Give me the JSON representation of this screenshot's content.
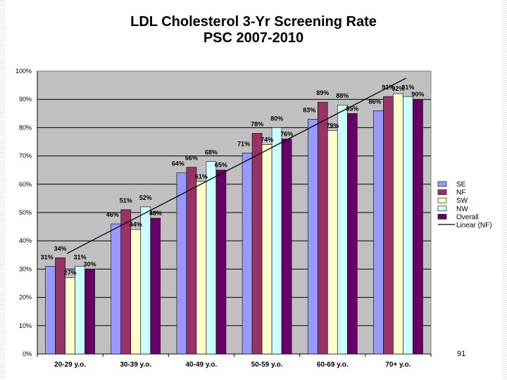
{
  "page": {
    "number": "91"
  },
  "chart_data": {
    "type": "bar",
    "title": "LDL Cholesterol 3-Yr Screening Rate",
    "subtitle": "PSC 2007-2010",
    "xlabel": "",
    "ylabel": "",
    "ylim": [
      0,
      100
    ],
    "yticks": [
      "0%",
      "10%",
      "20%",
      "30%",
      "40%",
      "50%",
      "60%",
      "70%",
      "80%",
      "90%",
      "100%"
    ],
    "grid": "horizontal",
    "legend_position": "right",
    "categories": [
      "20-29 y.o.",
      "30-39 y.o.",
      "40-49 y.o.",
      "50-59 y.o.",
      "60-69 y.o.",
      "70+ y.o."
    ],
    "series": [
      {
        "name": "SE",
        "color": "#9999ff",
        "values": [
          31,
          46,
          64,
          71,
          83,
          86
        ],
        "labels": [
          "31%",
          "46%",
          "64%",
          "71%",
          "83%",
          "86%"
        ]
      },
      {
        "name": "NF",
        "color": "#993366",
        "values": [
          34,
          51,
          66,
          78,
          89,
          91
        ],
        "labels": [
          "34%",
          "51%",
          "66%",
          "78%",
          "89%",
          "91%"
        ]
      },
      {
        "name": "SW",
        "color": "#ffffcc",
        "values": [
          27,
          44,
          61,
          74,
          79,
          92
        ],
        "labels": [
          "27%",
          "44%",
          "61%",
          "74%",
          "79%",
          "92%"
        ]
      },
      {
        "name": "NW",
        "color": "#ccffff",
        "values": [
          31,
          52,
          68,
          80,
          88,
          91
        ],
        "labels": [
          "31%",
          "52%",
          "68%",
          "80%",
          "88%",
          "91%"
        ]
      },
      {
        "name": "Overall",
        "color": "#660066",
        "values": [
          30,
          48,
          65,
          76,
          85,
          90
        ],
        "labels": [
          "30%",
          "48%",
          "65%",
          "76%",
          "85%",
          "90%"
        ]
      }
    ],
    "trendline": {
      "name": "Linear (NF)",
      "color": "#000000",
      "start": 35.5,
      "end": 97.5
    },
    "plot_background": "#c0c0c0"
  }
}
